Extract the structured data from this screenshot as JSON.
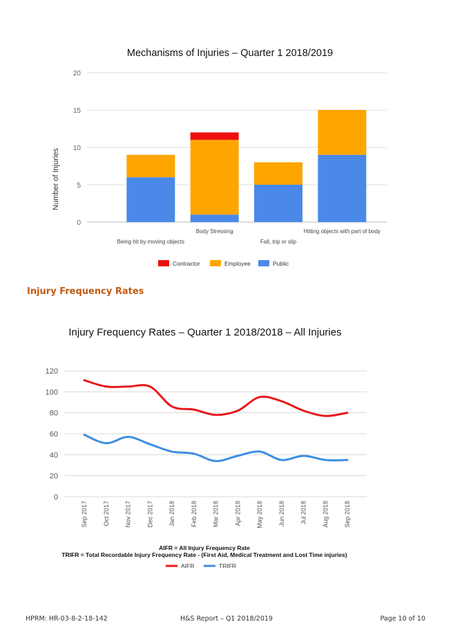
{
  "chart_data": [
    {
      "type": "bar",
      "stacked": true,
      "title": "Mechanisms of Injuries – Quarter 1 2018/2019",
      "ylabel": "Number of Injuries",
      "xlabel": "",
      "ylim": [
        0,
        20
      ],
      "yticks": [
        0,
        5,
        10,
        15,
        20
      ],
      "grid": true,
      "legend_position": "bottom",
      "categories": [
        "Being hit by moving objects",
        "Body Stressing",
        "Fall, trip or slip",
        "Hitting objects with part of body"
      ],
      "series": [
        {
          "name": "Public",
          "color": "#4a89e8",
          "values": [
            6,
            1,
            5,
            9
          ]
        },
        {
          "name": "Employee",
          "color": "#ffa500",
          "values": [
            3,
            10,
            3,
            6
          ]
        },
        {
          "name": "Contractor",
          "color": "#ee1010",
          "values": [
            0,
            1,
            0,
            0
          ]
        }
      ],
      "legend_order": [
        "Contractor",
        "Employee",
        "Public"
      ]
    },
    {
      "type": "line",
      "title": "Injury Frequency Rates – Quarter 1 2018/2018 – All Injuries",
      "xlabel": "",
      "ylabel": "",
      "ylim": [
        0,
        120
      ],
      "yticks": [
        0,
        20,
        40,
        60,
        80,
        100,
        120
      ],
      "grid": true,
      "legend_position": "bottom",
      "x": [
        "Sep 2017",
        "Oct 2017",
        "Nov 2017",
        "Dec 2017",
        "Jan 2018",
        "Feb 2018",
        "Mar 2018",
        "Apr 2018",
        "May 2018",
        "Jun 2018",
        "Jul 2018",
        "Aug 2018",
        "Sep 2018"
      ],
      "series": [
        {
          "name": "AIFR",
          "color": "#e8191a",
          "values": [
            111,
            105,
            105,
            105,
            86,
            83,
            78,
            82,
            95,
            91,
            82,
            77,
            80
          ]
        },
        {
          "name": "TRIFR",
          "color": "#3d8ee0",
          "values": [
            59,
            51,
            57,
            50,
            43,
            41,
            34,
            39,
            43,
            35,
            39,
            35,
            35
          ]
        }
      ],
      "notes": [
        "AIFR = All Injury Frequency Rate",
        "TRIFR = Total Recordable Injury Frequency Rate - (First Aid, Medical Treatment and Lost Time injuries)"
      ]
    }
  ],
  "section_heading": "Injury Frequency Rates",
  "footer": {
    "left": "HPRM: HR-03-8-2-18-142",
    "center": "H&S Report – Q1 2018/2019",
    "right": "Page 10 of 10"
  }
}
